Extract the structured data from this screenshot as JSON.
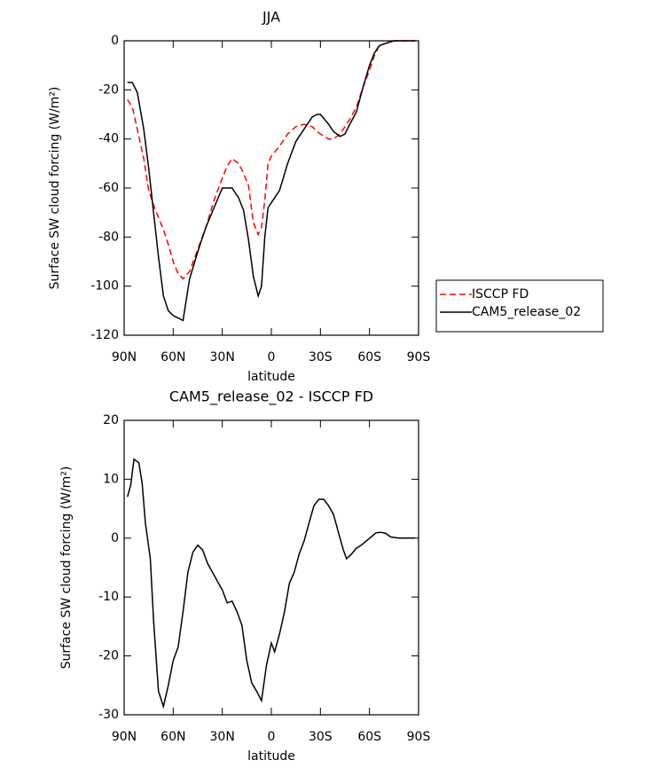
{
  "chart_data": [
    {
      "type": "line",
      "title": "JJA",
      "x_label": "latitude",
      "y_label": "Surface SW cloud forcing (W/m²)",
      "x": [
        88,
        85,
        82,
        78,
        75,
        72,
        69,
        66,
        63,
        60,
        57,
        54,
        50,
        45,
        40,
        35,
        30,
        27,
        24,
        20,
        17,
        14,
        11,
        8,
        6,
        4,
        2,
        0,
        -5,
        -10,
        -15,
        -20,
        -25,
        -28,
        -30,
        -35,
        -38,
        -42,
        -45,
        -48,
        -52,
        -56,
        -60,
        -63,
        -66,
        -70,
        -75,
        -80,
        -88
      ],
      "series": [
        {
          "name": "ISCCP FD",
          "color": "#ff0000",
          "line_style": "dashed",
          "values": [
            -24,
            -27,
            -36,
            -48,
            -61,
            -67,
            -72,
            -77,
            -83,
            -90,
            -95,
            -97,
            -94,
            -85,
            -76,
            -65,
            -56,
            -51,
            -48,
            -50,
            -54,
            -59,
            -74,
            -79,
            -76,
            -65,
            -50,
            -47,
            -43,
            -38,
            -35,
            -34,
            -35,
            -37,
            -38,
            -40,
            -40,
            -38,
            -35,
            -32,
            -27,
            -19,
            -12,
            -6,
            -2,
            -1,
            0,
            0,
            0
          ]
        },
        {
          "name": "CAM5_release_02",
          "color": "#000000",
          "line_style": "solid",
          "values": [
            -17,
            -17,
            -21,
            -36,
            -52,
            -70,
            -88,
            -104,
            -110,
            -112,
            -113,
            -114,
            -97,
            -86,
            -76,
            -68,
            -60,
            -60,
            -60,
            -64,
            -69,
            -81,
            -96,
            -104,
            -100,
            -80,
            -68,
            -66,
            -61,
            -50,
            -41,
            -36,
            -31,
            -30,
            -30,
            -34,
            -37,
            -39,
            -38,
            -34,
            -29,
            -19,
            -10,
            -5,
            -2,
            -1,
            0,
            0,
            0
          ]
        }
      ],
      "xlim": [
        90,
        -90
      ],
      "xticks": [
        {
          "value": 90,
          "label": "90N"
        },
        {
          "value": 60,
          "label": "60N"
        },
        {
          "value": 30,
          "label": "30N"
        },
        0,
        {
          "value": -30,
          "label": "30S"
        },
        {
          "value": -60,
          "label": "60S"
        },
        {
          "value": -90,
          "label": "90S"
        }
      ],
      "ylim": [
        -120,
        0
      ],
      "yticks": [
        0,
        -20,
        -40,
        -60,
        -80,
        -100,
        -120
      ],
      "legend": "right"
    },
    {
      "type": "line",
      "title": "CAM5_release_02 - ISCCP FD",
      "x_label": "latitude",
      "y_label": "Surface SW cloud forcing (W/m²)",
      "x": [
        88,
        86,
        84,
        81,
        79,
        77,
        74,
        72,
        69,
        66,
        63,
        60,
        57,
        54,
        51,
        48,
        45,
        42,
        39,
        36,
        33,
        30,
        27,
        24,
        21,
        18,
        15,
        12,
        9,
        6,
        3,
        0,
        -2,
        -5,
        -8,
        -11,
        -14,
        -17,
        -20,
        -23,
        -26,
        -29,
        -32,
        -35,
        -38,
        -41,
        -44,
        -46,
        -49,
        -52,
        -55,
        -58,
        -61,
        -64,
        -67,
        -70,
        -73,
        -78,
        -85,
        -88
      ],
      "values": [
        7,
        9,
        13.4,
        12.8,
        9.3,
        2.5,
        -3.5,
        -14,
        -26,
        -28.6,
        -25,
        -20.8,
        -18.5,
        -12.5,
        -5.8,
        -2.4,
        -1.2,
        -2,
        -4.3,
        -5.8,
        -7.3,
        -8.8,
        -11,
        -10.7,
        -12.5,
        -14.8,
        -20.8,
        -24.6,
        -26,
        -27.6,
        -21.6,
        -17.8,
        -19.3,
        -16.3,
        -12.5,
        -7.7,
        -5.8,
        -2.7,
        -0.5,
        2.5,
        5.5,
        6.6,
        6.6,
        5.5,
        4,
        1,
        -2,
        -3.5,
        -2.7,
        -1.7,
        -1.2,
        -0.5,
        0.2,
        0.9,
        1,
        0.8,
        0.2,
        0,
        0,
        0
      ],
      "color": "#000000",
      "xlim": [
        90,
        -90
      ],
      "xticks": [
        {
          "value": 90,
          "label": "90N"
        },
        {
          "value": 60,
          "label": "60N"
        },
        {
          "value": 30,
          "label": "30N"
        },
        0,
        {
          "value": -30,
          "label": "30S"
        },
        {
          "value": -60,
          "label": "60S"
        },
        {
          "value": -90,
          "label": "90S"
        }
      ],
      "ylim": [
        -30,
        20
      ],
      "yticks": [
        20,
        10,
        0,
        -10,
        -20,
        -30
      ]
    }
  ]
}
